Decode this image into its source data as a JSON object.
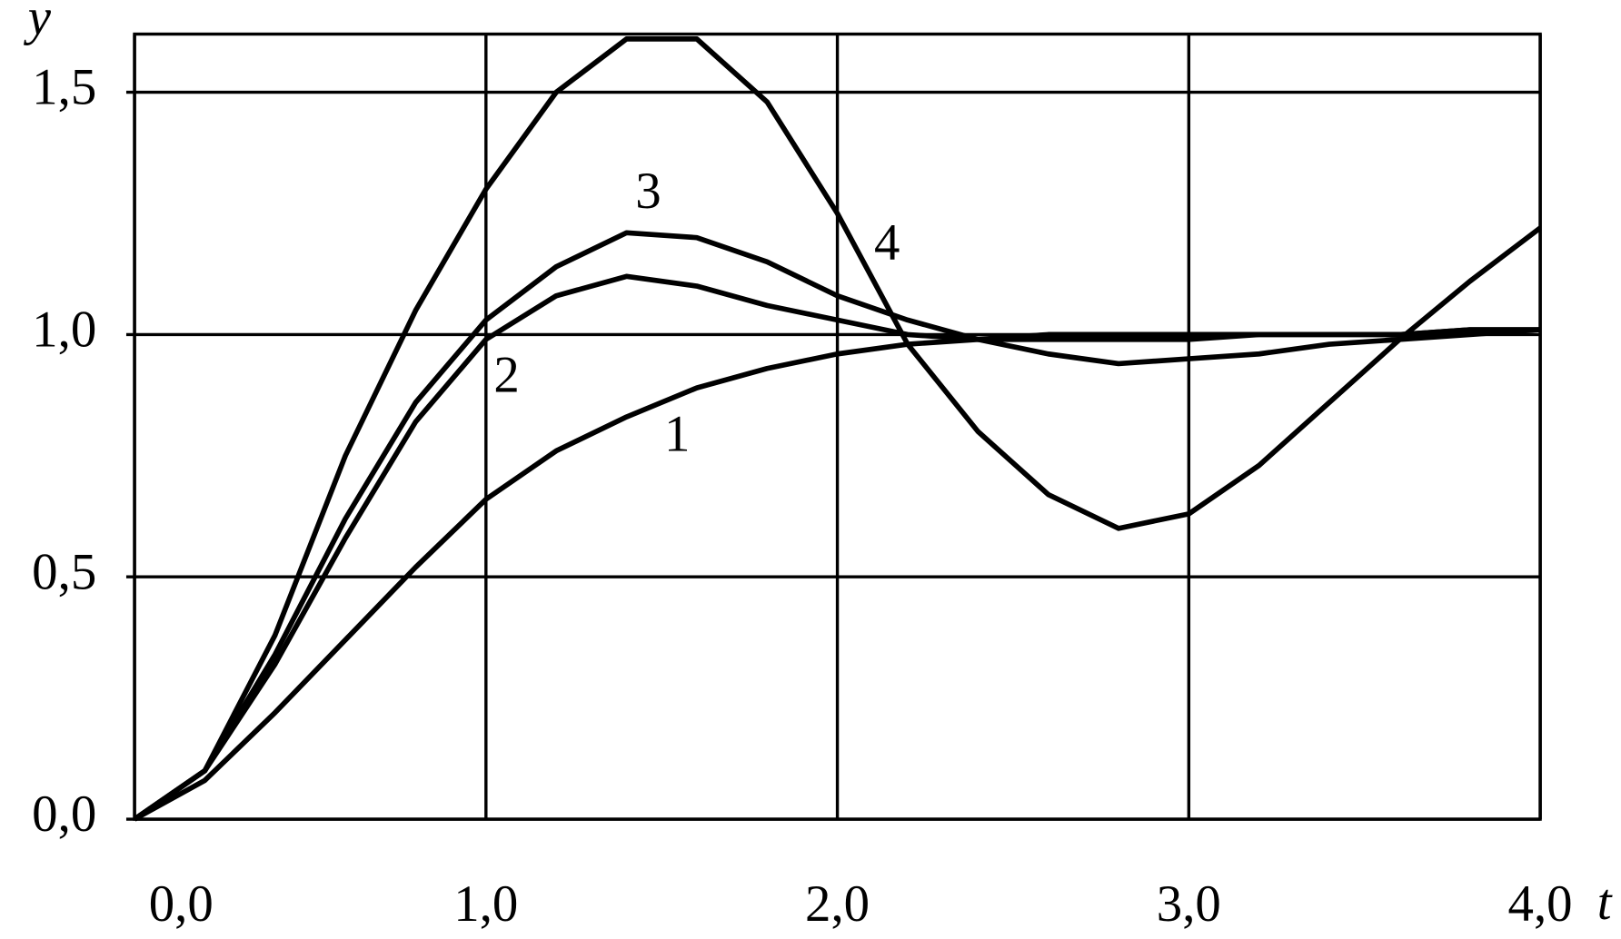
{
  "chart_data": {
    "type": "line",
    "xlabel": "t",
    "ylabel": "y",
    "x": [
      0,
      0.2,
      0.4,
      0.6,
      0.8,
      1.0,
      1.2,
      1.4,
      1.6,
      1.8,
      2.0,
      2.2,
      2.4,
      2.6,
      2.8,
      3.0,
      3.2,
      3.4,
      3.6,
      3.8,
      4.0
    ],
    "series": [
      {
        "name": "1",
        "color": "#000000",
        "values": [
          0,
          0.08,
          0.22,
          0.37,
          0.52,
          0.66,
          0.76,
          0.83,
          0.89,
          0.93,
          0.96,
          0.98,
          0.99,
          1.0,
          1.0,
          1.0,
          1.0,
          1.0,
          1.0,
          1.01,
          1.01
        ]
      },
      {
        "name": "2",
        "color": "#000000",
        "values": [
          0,
          0.1,
          0.32,
          0.58,
          0.82,
          0.99,
          1.08,
          1.12,
          1.1,
          1.06,
          1.03,
          1.0,
          0.99,
          0.99,
          0.99,
          0.99,
          1.0,
          1.0,
          1.0,
          1.01,
          1.01
        ]
      },
      {
        "name": "3",
        "color": "#000000",
        "values": [
          0,
          0.1,
          0.34,
          0.62,
          0.86,
          1.03,
          1.14,
          1.21,
          1.2,
          1.15,
          1.08,
          1.03,
          0.99,
          0.96,
          0.94,
          0.95,
          0.96,
          0.98,
          0.99,
          1.0,
          1.01
        ]
      },
      {
        "name": "4",
        "color": "#000000",
        "values": [
          0,
          0.1,
          0.38,
          0.75,
          1.05,
          1.3,
          1.5,
          1.61,
          1.61,
          1.48,
          1.25,
          0.98,
          0.8,
          0.67,
          0.6,
          0.63,
          0.73,
          0.86,
          0.99,
          1.11,
          1.22
        ]
      }
    ],
    "xlim": [
      0,
      4.0
    ],
    "ylim": [
      0,
      1.62
    ],
    "xticks": [
      {
        "value": 0,
        "label": "0,0"
      },
      {
        "value": 1.0,
        "label": "1,0"
      },
      {
        "value": 2.0,
        "label": "2,0"
      },
      {
        "value": 3.0,
        "label": "3,0"
      },
      {
        "value": 4.0,
        "label": "4,0"
      }
    ],
    "yticks": [
      {
        "value": 0,
        "label": "0,0"
      },
      {
        "value": 0.5,
        "label": "0,5"
      },
      {
        "value": 1.0,
        "label": "1,0"
      },
      {
        "value": 1.5,
        "label": "1,5"
      }
    ],
    "grid": true
  }
}
